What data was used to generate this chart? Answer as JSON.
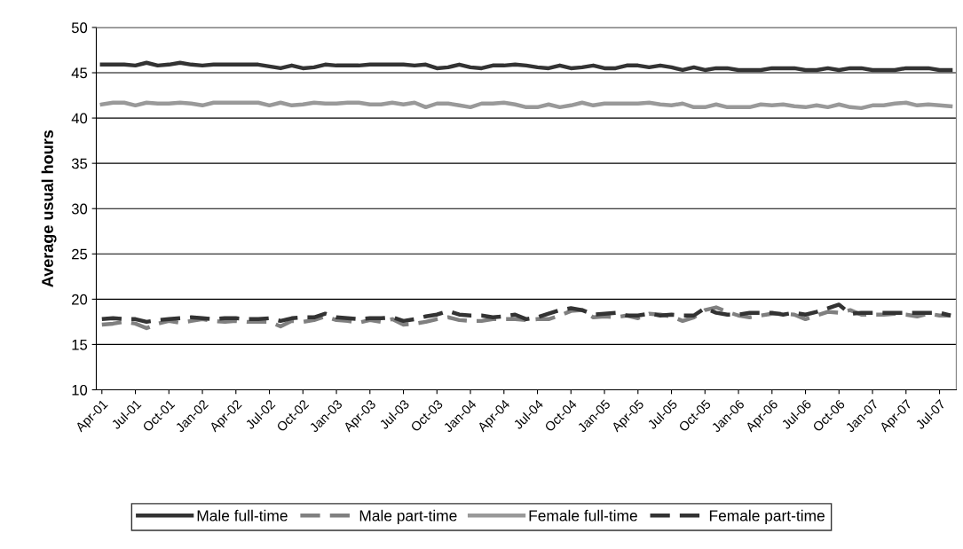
{
  "chart_data": {
    "type": "line",
    "ylabel": "Average usual hours",
    "ylim": [
      10,
      50
    ],
    "yticks": [
      10,
      15,
      20,
      25,
      30,
      35,
      40,
      45,
      50
    ],
    "grid": "y",
    "legend": "bottom",
    "marker": "none",
    "categories": [
      "Apr-01",
      null,
      null,
      "Jul-01",
      null,
      null,
      "Oct-01",
      null,
      null,
      "Jan-02",
      null,
      null,
      "Apr-02",
      null,
      null,
      "Jul-02",
      null,
      null,
      "Oct-02",
      null,
      null,
      "Jan-03",
      null,
      null,
      "Apr-03",
      null,
      null,
      "Jul-03",
      null,
      null,
      "Oct-03",
      null,
      null,
      "Jan-04",
      null,
      null,
      "Apr-04",
      null,
      null,
      "Jul-04",
      null,
      null,
      "Oct-04",
      null,
      null,
      "Jan-05",
      null,
      null,
      "Apr-05",
      null,
      null,
      "Jul-05",
      null,
      null,
      "Oct-05",
      null,
      null,
      "Jan-06",
      null,
      null,
      "Apr-06",
      null,
      null,
      "Jul-06",
      null,
      null,
      "Oct-06",
      null,
      null,
      "Jan-07",
      null,
      null,
      "Apr-07",
      null,
      null,
      "Jul-07",
      null
    ],
    "series": [
      {
        "name": "Male full-time",
        "color": "#333333",
        "line_style": "solid",
        "values": [
          45.9,
          45.9,
          45.9,
          45.8,
          46.1,
          45.8,
          45.9,
          46.1,
          45.9,
          45.8,
          45.9,
          45.9,
          45.9,
          45.9,
          45.9,
          45.7,
          45.5,
          45.8,
          45.5,
          45.6,
          45.9,
          45.8,
          45.8,
          45.8,
          45.9,
          45.9,
          45.9,
          45.9,
          45.8,
          45.9,
          45.5,
          45.6,
          45.9,
          45.6,
          45.5,
          45.8,
          45.8,
          45.9,
          45.8,
          45.6,
          45.5,
          45.8,
          45.5,
          45.6,
          45.8,
          45.5,
          45.5,
          45.8,
          45.8,
          45.6,
          45.8,
          45.6,
          45.3,
          45.6,
          45.3,
          45.5,
          45.5,
          45.3,
          45.3,
          45.3,
          45.5,
          45.5,
          45.5,
          45.3,
          45.3,
          45.5,
          45.3,
          45.5,
          45.5,
          45.3,
          45.3,
          45.3,
          45.5,
          45.5,
          45.5,
          45.3,
          45.3
        ]
      },
      {
        "name": "Male part-time",
        "color": "#808080",
        "line_style": "dashed",
        "values": [
          17.2,
          17.3,
          17.5,
          17.3,
          16.8,
          17.3,
          17.6,
          17.4,
          17.6,
          17.8,
          17.6,
          17.5,
          17.6,
          17.5,
          17.5,
          17.5,
          17.0,
          17.6,
          17.5,
          17.7,
          18.1,
          17.7,
          17.6,
          17.4,
          17.7,
          17.5,
          17.8,
          17.2,
          17.3,
          17.5,
          17.8,
          18.0,
          17.7,
          17.6,
          17.6,
          17.8,
          17.8,
          17.8,
          17.7,
          17.8,
          17.8,
          18.2,
          18.7,
          18.8,
          18.0,
          18.1,
          18.0,
          18.2,
          17.9,
          18.4,
          18.3,
          18.1,
          17.6,
          18.0,
          18.8,
          19.1,
          18.6,
          18.2,
          18.0,
          18.2,
          18.4,
          18.4,
          18.3,
          17.8,
          18.2,
          18.6,
          18.5,
          18.8,
          18.3,
          18.3,
          18.3,
          18.4,
          18.3,
          18.1,
          18.4,
          18.2,
          18.2
        ]
      },
      {
        "name": "Female full-time",
        "color": "#999999",
        "line_style": "solid",
        "values": [
          41.5,
          41.7,
          41.7,
          41.4,
          41.7,
          41.6,
          41.6,
          41.7,
          41.6,
          41.4,
          41.7,
          41.7,
          41.7,
          41.7,
          41.7,
          41.4,
          41.7,
          41.4,
          41.5,
          41.7,
          41.6,
          41.6,
          41.7,
          41.7,
          41.5,
          41.5,
          41.7,
          41.5,
          41.7,
          41.2,
          41.6,
          41.6,
          41.4,
          41.2,
          41.6,
          41.6,
          41.7,
          41.5,
          41.2,
          41.2,
          41.5,
          41.2,
          41.4,
          41.7,
          41.4,
          41.6,
          41.6,
          41.6,
          41.6,
          41.7,
          41.5,
          41.4,
          41.6,
          41.2,
          41.2,
          41.5,
          41.2,
          41.2,
          41.2,
          41.5,
          41.4,
          41.5,
          41.3,
          41.2,
          41.4,
          41.2,
          41.5,
          41.2,
          41.1,
          41.4,
          41.4,
          41.6,
          41.7,
          41.4,
          41.5,
          41.4,
          41.3
        ]
      },
      {
        "name": "Female part-time",
        "color": "#333333",
        "line_style": "dashed",
        "values": [
          17.8,
          17.9,
          17.8,
          17.8,
          17.5,
          17.7,
          17.8,
          17.9,
          18.0,
          17.9,
          17.8,
          17.9,
          17.9,
          17.8,
          17.8,
          17.9,
          17.6,
          17.9,
          18.0,
          18.0,
          18.4,
          18.0,
          17.9,
          17.8,
          17.9,
          17.9,
          18.0,
          17.6,
          17.8,
          18.1,
          18.3,
          18.7,
          18.3,
          18.2,
          18.2,
          18.0,
          18.1,
          18.3,
          17.8,
          18.0,
          18.4,
          18.8,
          19.0,
          18.8,
          18.3,
          18.4,
          18.5,
          18.2,
          18.2,
          18.4,
          18.2,
          18.3,
          18.2,
          18.2,
          19.0,
          18.5,
          18.3,
          18.3,
          18.5,
          18.5,
          18.5,
          18.3,
          18.5,
          18.3,
          18.6,
          19.0,
          19.4,
          18.4,
          18.5,
          18.5,
          18.5,
          18.5,
          18.5,
          18.5,
          18.5,
          18.5,
          18.2
        ]
      }
    ]
  }
}
